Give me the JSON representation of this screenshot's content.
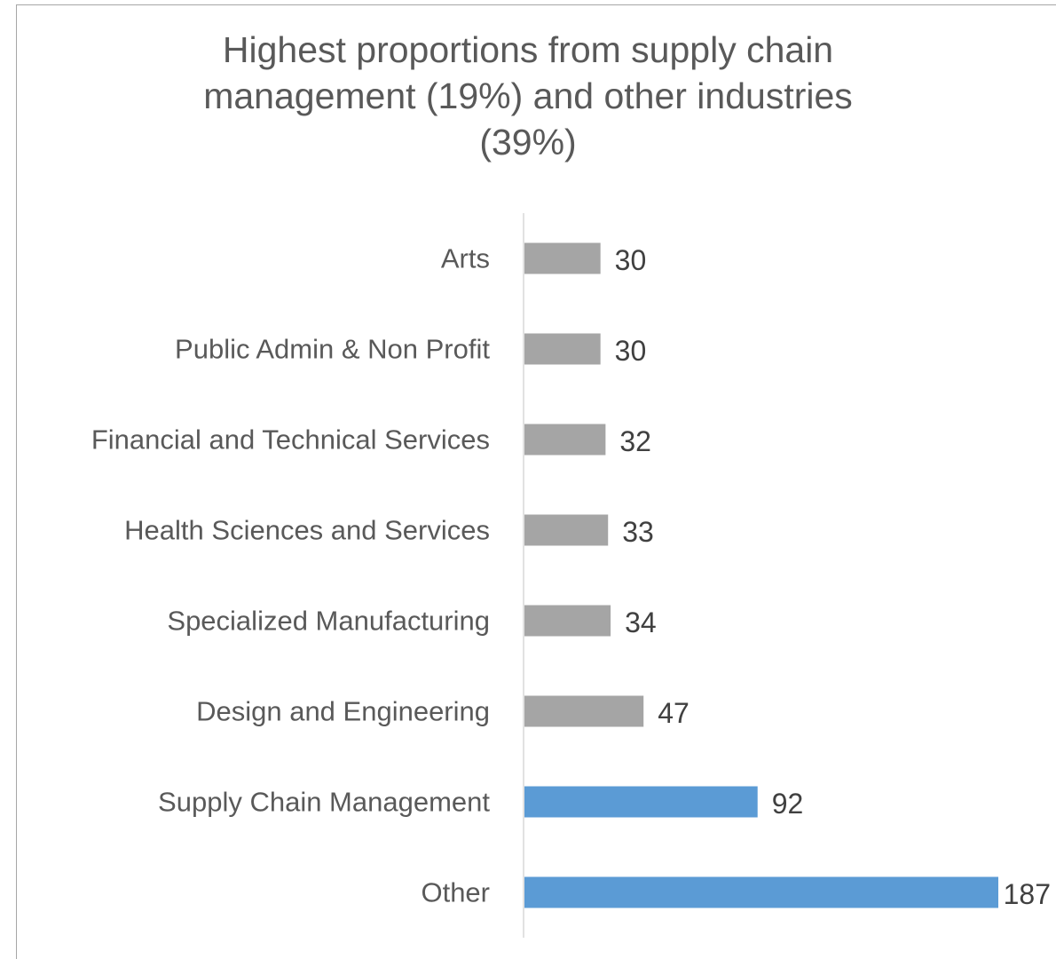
{
  "chart_data": {
    "type": "bar",
    "orientation": "horizontal",
    "title_lines": [
      "Highest proportions from supply chain",
      "management (19%) and other industries",
      "(39%)"
    ],
    "categories": [
      "Arts",
      "Public Admin & Non Profit",
      "Financial and Technical Services",
      "Health Sciences and Services",
      "Specialized Manufacturing",
      "Design and Engineering",
      "Supply Chain Management",
      "Other"
    ],
    "values": [
      30,
      30,
      32,
      33,
      34,
      47,
      92,
      187
    ],
    "value_labels": [
      "30",
      "30",
      "32",
      "33",
      "34",
      "47",
      "92",
      "187"
    ],
    "highlighted": [
      false,
      false,
      false,
      false,
      false,
      false,
      true,
      true
    ],
    "colors": {
      "default_bar": "#a5a5a5",
      "highlight_bar": "#5b9bd5",
      "axis_line": "#d9d9d9"
    },
    "xlim": [
      0,
      187
    ],
    "grid": false,
    "legend": "none"
  }
}
